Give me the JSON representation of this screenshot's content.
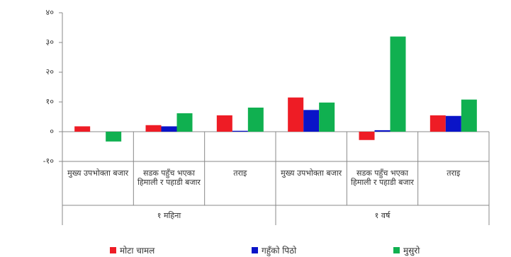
{
  "chart_data": {
    "type": "bar",
    "categories": [
      "मुख्य उपभोक्ता बजार",
      "सडक पहुँच भएका हिमाली र पहाडी बजार",
      "तराइ",
      "मुख्य उपभोक्ता बजार",
      "सडक पहुँच भएका हिमाली र पहाडी बजार",
      "तराइ"
    ],
    "groups": [
      "१ महिना",
      "१ वर्ष"
    ],
    "series": [
      {
        "name": "मोटा चामल",
        "color": "#ee1c25",
        "values": [
          1.8,
          2.2,
          5.5,
          11.5,
          -2.8,
          5.5
        ]
      },
      {
        "name": "गहुँको पिठो",
        "color": "#0a14c8",
        "values": [
          0,
          1.8,
          0.3,
          7.3,
          0.5,
          5.3
        ]
      },
      {
        "name": "मुसुरो",
        "color": "#10b050",
        "values": [
          -3.3,
          6.2,
          8.1,
          9.8,
          32,
          10.8
        ]
      }
    ],
    "ylim": [
      -10,
      40
    ],
    "yticks": [
      {
        "value": -10,
        "label": "-१०"
      },
      {
        "value": 0,
        "label": "०"
      },
      {
        "value": 10,
        "label": "१०"
      },
      {
        "value": 20,
        "label": "२०"
      },
      {
        "value": 30,
        "label": "३०"
      },
      {
        "value": 40,
        "label": "४०"
      }
    ]
  }
}
